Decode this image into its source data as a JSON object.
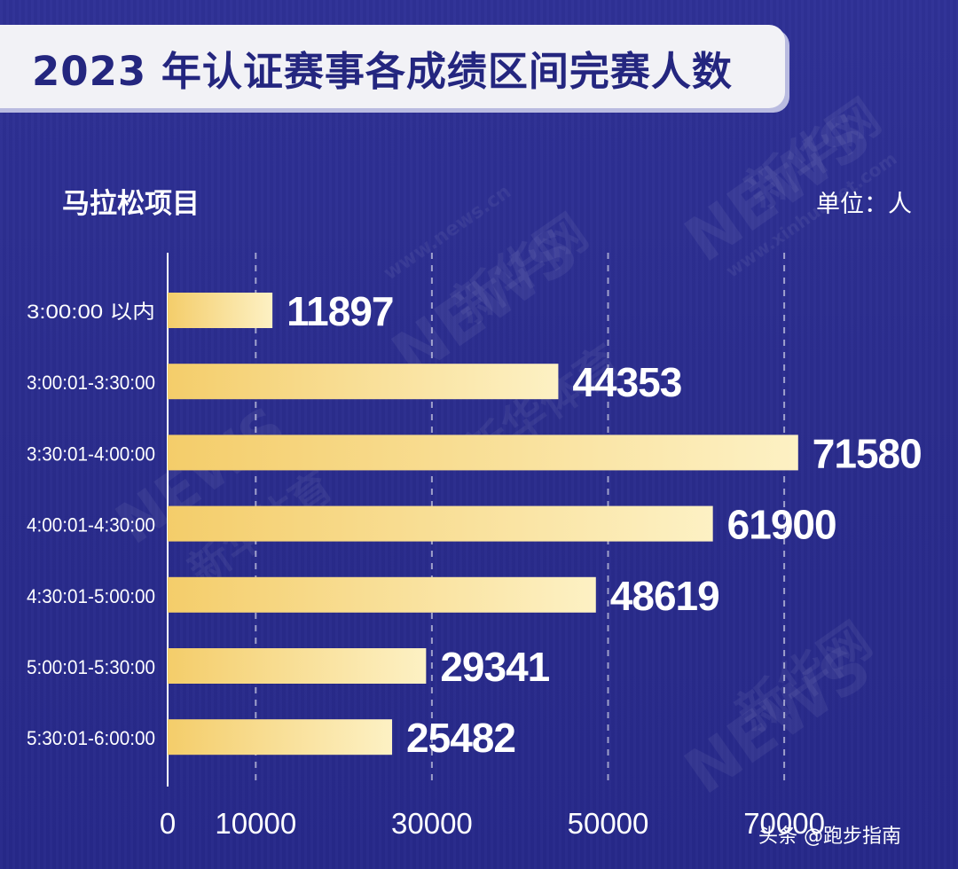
{
  "header": {
    "title": "2023 年认证赛事各成绩区间完赛人数",
    "subtitle": "马拉松项目",
    "unit": "单位：人"
  },
  "watermark": {
    "url": "www.news.cn",
    "brand": "新华网",
    "sports": "新华体育",
    "logo": "NEWS",
    "url2": "www.xinhuanet.com"
  },
  "credit": "头条 @跑步指南",
  "colors": {
    "background": "#2b2d8f",
    "bar_start": "#f4cd6a",
    "bar_end": "#fdf1c4",
    "text": "#ffffff",
    "title_text": "#24267f"
  },
  "chart_data": {
    "type": "bar",
    "orientation": "horizontal",
    "title": "2023 年认证赛事各成绩区间完赛人数",
    "subtitle": "马拉松项目",
    "xlabel": "",
    "ylabel": "",
    "unit": "单位：人",
    "categories": [
      "3:00:00 以内",
      "3:00:01-3:30:00",
      "3:30:01-4:00:00",
      "4:00:01-4:30:00",
      "4:30:01-5:00:00",
      "5:00:01-5:30:00",
      "5:30:01-6:00:00"
    ],
    "values": [
      11897,
      44353,
      71580,
      61900,
      48619,
      29341,
      25482
    ],
    "value_labels": [
      "11897",
      "44353",
      "71580",
      "61900",
      "48619",
      "29341",
      "25482"
    ],
    "xlim": [
      0,
      80000
    ],
    "xticks": [
      0,
      10000,
      30000,
      50000,
      70000
    ],
    "xtick_labels": [
      "0",
      "10000",
      "30000",
      "50000",
      "70000"
    ],
    "grid": "dashed vertical"
  }
}
